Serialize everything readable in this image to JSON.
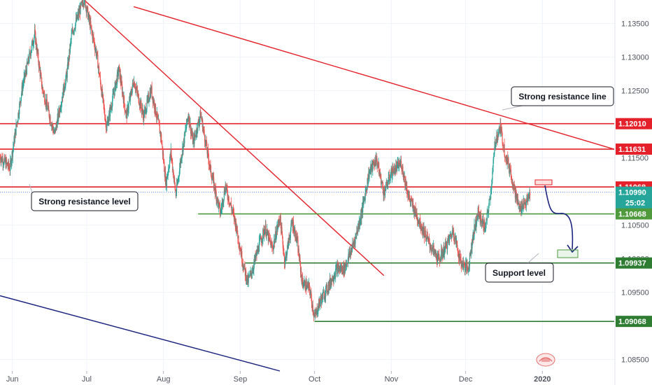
{
  "chart_data": {
    "type": "candlestick",
    "instrument": "EURUSD",
    "y_range": [
      1.0833,
      1.1385
    ],
    "y_ticks": [
      1.085,
      1.095,
      1.1,
      1.105,
      1.115,
      1.125,
      1.13,
      1.135
    ],
    "y_tick_labels": [
      "1.08500",
      "1.09500",
      "1.10000",
      "1.10500",
      "1.11500",
      "1.12500",
      "1.13000",
      "1.13500"
    ],
    "x_labels": [
      "Jun",
      "Jul",
      "Aug",
      "Sep",
      "Oct",
      "Nov",
      "Dec",
      "2020"
    ],
    "x_label_positions": [
      "2019-06-01",
      "2019-07-01",
      "2019-08-01",
      "2019-09-01",
      "2019-10-01",
      "2019-11-01",
      "2019-12-01",
      "2020-01-01"
    ],
    "x_range": [
      "2019-05-27",
      "2020-01-30"
    ],
    "price_path": [
      [
        "2019-05-27",
        1.1152
      ],
      [
        "2019-05-31",
        1.1135
      ],
      [
        "2019-06-05",
        1.1255
      ],
      [
        "2019-06-10",
        1.1335
      ],
      [
        "2019-06-13",
        1.1255
      ],
      [
        "2019-06-18",
        1.1185
      ],
      [
        "2019-06-23",
        1.1275
      ],
      [
        "2019-06-25",
        1.1335
      ],
      [
        "2019-06-30",
        1.1388
      ],
      [
        "2019-07-05",
        1.1305
      ],
      [
        "2019-07-09",
        1.1195
      ],
      [
        "2019-07-14",
        1.1282
      ],
      [
        "2019-07-17",
        1.1212
      ],
      [
        "2019-07-20",
        1.1265
      ],
      [
        "2019-07-24",
        1.1212
      ],
      [
        "2019-07-27",
        1.1252
      ],
      [
        "2019-07-31",
        1.1182
      ],
      [
        "2019-08-02",
        1.1112
      ],
      [
        "2019-08-04",
        1.1158
      ],
      [
        "2019-08-06",
        1.1095
      ],
      [
        "2019-08-08",
        1.1148
      ],
      [
        "2019-08-11",
        1.1215
      ],
      [
        "2019-08-13",
        1.1172
      ],
      [
        "2019-08-16",
        1.1215
      ],
      [
        "2019-08-20",
        1.1132
      ],
      [
        "2019-08-24",
        1.1068
      ],
      [
        "2019-08-26",
        1.1108
      ],
      [
        "2019-08-30",
        1.1055
      ],
      [
        "2019-09-02",
        1.0995
      ],
      [
        "2019-09-04",
        1.0965
      ],
      [
        "2019-09-06",
        1.0985
      ],
      [
        "2019-09-09",
        1.1025
      ],
      [
        "2019-09-11",
        1.1045
      ],
      [
        "2019-09-14",
        1.1015
      ],
      [
        "2019-09-17",
        1.1062
      ],
      [
        "2019-09-19",
        1.0995
      ],
      [
        "2019-09-22",
        1.1055
      ],
      [
        "2019-09-24",
        1.1025
      ],
      [
        "2019-09-26",
        1.0965
      ],
      [
        "2019-09-29",
        1.0955
      ],
      [
        "2019-10-01",
        1.0912
      ],
      [
        "2019-10-03",
        1.0935
      ],
      [
        "2019-10-06",
        1.0955
      ],
      [
        "2019-10-10",
        1.0985
      ],
      [
        "2019-10-13",
        1.0985
      ],
      [
        "2019-10-17",
        1.1025
      ],
      [
        "2019-10-20",
        1.1068
      ],
      [
        "2019-10-23",
        1.1128
      ],
      [
        "2019-10-26",
        1.1148
      ],
      [
        "2019-10-29",
        1.1098
      ],
      [
        "2019-11-01",
        1.1128
      ],
      [
        "2019-11-05",
        1.1142
      ],
      [
        "2019-11-08",
        1.1092
      ],
      [
        "2019-11-12",
        1.1058
      ],
      [
        "2019-11-16",
        1.1025
      ],
      [
        "2019-11-20",
        1.0998
      ],
      [
        "2019-11-23",
        1.1018
      ],
      [
        "2019-11-26",
        1.1042
      ],
      [
        "2019-11-29",
        1.0995
      ],
      [
        "2019-12-02",
        1.0985
      ],
      [
        "2019-12-04",
        1.1035
      ],
      [
        "2019-12-06",
        1.1068
      ],
      [
        "2019-12-09",
        1.1045
      ],
      [
        "2019-12-11",
        1.1095
      ],
      [
        "2019-12-13",
        1.1175
      ],
      [
        "2019-12-15",
        1.1195
      ],
      [
        "2019-12-17",
        1.1155
      ],
      [
        "2019-12-19",
        1.1132
      ],
      [
        "2019-12-21",
        1.1098
      ],
      [
        "2019-12-23",
        1.1072
      ],
      [
        "2019-12-24",
        1.1082
      ],
      [
        "2019-12-26",
        1.1085
      ],
      [
        "2019-12-27",
        1.1099
      ]
    ],
    "horizontal_levels": [
      {
        "price": 1.1201,
        "label": "1.12010",
        "role": "resistance",
        "color": "#e4202a"
      },
      {
        "price": 1.11631,
        "label": "1.11631",
        "role": "resistance",
        "color": "#e4202a"
      },
      {
        "price": 1.11068,
        "label": "1.11068",
        "role": "resistance",
        "color": "#e4202a"
      },
      {
        "price": 1.10668,
        "label": "1.10668",
        "role": "support",
        "color": "#4e9a3c"
      },
      {
        "price": 1.09937,
        "label": "1.09937",
        "role": "support",
        "color": "#2e7d32"
      },
      {
        "price": 1.09068,
        "label": "1.09068",
        "role": "support",
        "color": "#2e7d32"
      }
    ],
    "last_price": {
      "price": 1.1099,
      "label": "1.10990",
      "countdown": "25:02",
      "color": "#26a69a"
    },
    "trend_lines": [
      {
        "name": "descending-resistance-long",
        "color": "#e4202a",
        "from": [
          "2019-07-20",
          1.1375
        ],
        "to": [
          "2020-01-30",
          1.1163
        ]
      },
      {
        "name": "descending-resistance-steep",
        "color": "#e4202a",
        "from": [
          "2019-06-30",
          1.1385
        ],
        "to": [
          "2019-10-29",
          1.0975
        ]
      },
      {
        "name": "channel-bottom",
        "color": "#1a237e",
        "from": [
          "2019-05-27",
          1.0945
        ],
        "to": [
          "2019-09-17",
          1.0833
        ]
      }
    ],
    "annotations": [
      {
        "text": "Strong resistance line"
      },
      {
        "text": "Strong resistance level"
      },
      {
        "text": "Support level"
      }
    ],
    "colors": {
      "up": "#26a69a",
      "down": "#ef5350",
      "level_resistance": "#e4202a",
      "level_support": "#4e9a3c",
      "dotted_last": "#2962ff"
    }
  }
}
